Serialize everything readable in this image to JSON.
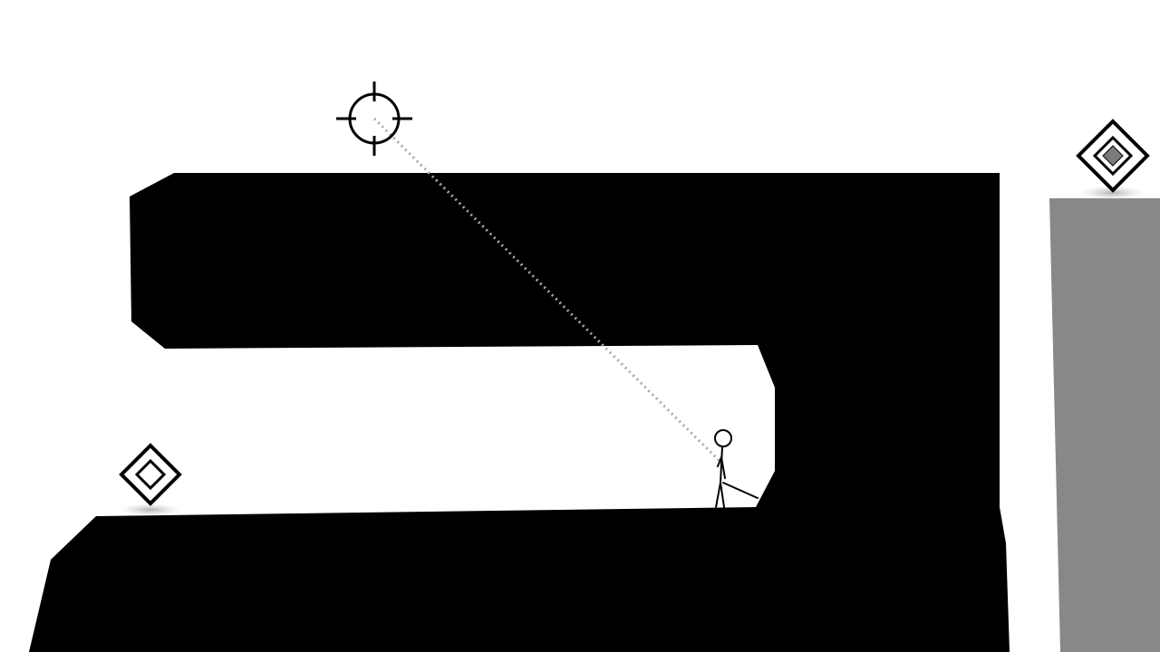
{
  "scene": {
    "background_color": "#ffffff",
    "terrain_color": "#000000",
    "platform_color": "#888888",
    "aim_line_color": "#a9a9a9",
    "icons": {
      "crosshair": "crosshair-icon",
      "checkpoint": "diamond-checkpoint-icon",
      "goal": "diamond-goal-icon",
      "player": "stick-figure-player"
    },
    "checkpoint_state": "inactive",
    "goal_state": "active"
  }
}
